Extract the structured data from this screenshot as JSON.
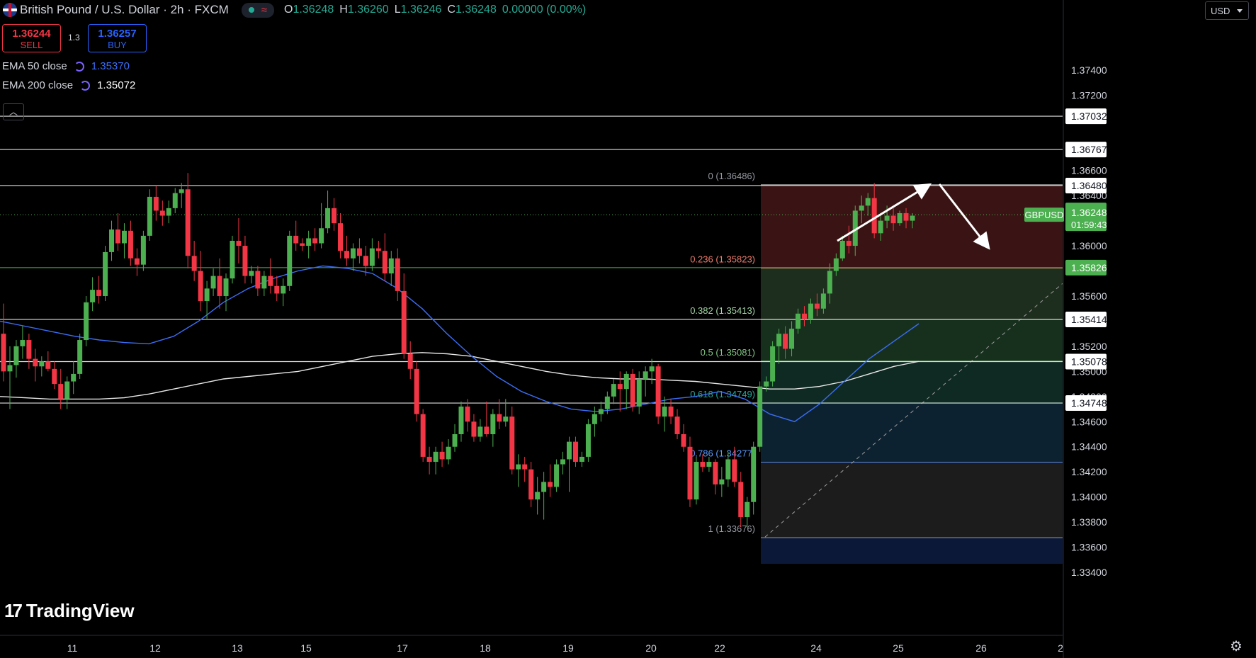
{
  "header": {
    "symbol_title": "British Pound / U.S. Dollar · 2h · FXCM",
    "ohlc": {
      "o": "1.36248",
      "h": "1.36260",
      "l": "1.36246",
      "c": "1.36248",
      "chg": "0.00000 (0.00%)"
    }
  },
  "trade": {
    "sell_price": "1.36244",
    "sell_label": "SELL",
    "spread": "1.3",
    "buy_price": "1.36257",
    "buy_label": "BUY"
  },
  "indicators": [
    {
      "label": "EMA 50 close",
      "value": "1.35370",
      "color": "#3b6ef6"
    },
    {
      "label": "EMA 200 close",
      "value": "1.35072",
      "color": "#e8e8e8"
    }
  ],
  "currency_selector": "USD",
  "branding": "TradingView",
  "colors": {
    "up": "#4caf50",
    "down": "#f23645",
    "ema50": "#3b6ef6",
    "ema200": "#e8e8e8",
    "background": "#000000"
  },
  "chart_data": {
    "type": "candlestick",
    "symbol": "GBPUSD",
    "last_price": "1.36248",
    "countdown": "01:59:43",
    "y_axis": {
      "range": [
        1.332,
        1.377
      ],
      "ticks": [
        "1.37400",
        "1.37200",
        "1.36800",
        "1.36600",
        "1.36400",
        "1.36000",
        "1.35600",
        "1.35200",
        "1.35000",
        "1.34800",
        "1.34600",
        "1.34400",
        "1.34200",
        "1.34000",
        "1.33800",
        "1.33600",
        "1.33400"
      ]
    },
    "x_axis": {
      "labels": [
        "11",
        "12",
        "13",
        "15",
        "17",
        "18",
        "19",
        "20",
        "22",
        "24",
        "25",
        "26",
        "2"
      ]
    },
    "horizontal_levels": [
      {
        "price": 1.37032,
        "label": "1.37032"
      },
      {
        "price": 1.36767,
        "label": "1.36767"
      },
      {
        "price": 1.3648,
        "label": "1.36480"
      },
      {
        "price": 1.35826,
        "label": "1.35826"
      },
      {
        "price": 1.35414,
        "label": "1.35414"
      },
      {
        "price": 1.35078,
        "label": "1.35078"
      },
      {
        "price": 1.34748,
        "label": "1.34748"
      }
    ],
    "fibonacci": [
      {
        "ratio": "0",
        "price": 1.36486,
        "label": "0 (1.36486)"
      },
      {
        "ratio": "0.236",
        "price": 1.35823,
        "label": "0.236 (1.35823)"
      },
      {
        "ratio": "0.382",
        "price": 1.35413,
        "label": "0.382 (1.35413)"
      },
      {
        "ratio": "0.5",
        "price": 1.35081,
        "label": "0.5 (1.35081)"
      },
      {
        "ratio": "0.618",
        "price": 1.34749,
        "label": "0.618 (1.34749)"
      },
      {
        "ratio": "0.786",
        "price": 1.34277,
        "label": "0.786 (1.34277)"
      },
      {
        "ratio": "1",
        "price": 1.33676,
        "label": "1 (1.33676)"
      }
    ],
    "candles": [
      [
        1.353,
        1.3554,
        1.3492,
        1.35
      ],
      [
        1.35,
        1.352,
        1.347,
        1.3505
      ],
      [
        1.3505,
        1.3525,
        1.3495,
        1.352
      ],
      [
        1.352,
        1.3536,
        1.351,
        1.3525
      ],
      [
        1.3525,
        1.353,
        1.3502,
        1.351
      ],
      [
        1.351,
        1.3518,
        1.3492,
        1.3504
      ],
      [
        1.3504,
        1.3512,
        1.3496,
        1.3508
      ],
      [
        1.3508,
        1.3516,
        1.35,
        1.3502
      ],
      [
        1.3502,
        1.3508,
        1.3486,
        1.349
      ],
      [
        1.349,
        1.3502,
        1.347,
        1.3478
      ],
      [
        1.3478,
        1.3496,
        1.347,
        1.3492
      ],
      [
        1.3492,
        1.3508,
        1.3482,
        1.3498
      ],
      [
        1.3498,
        1.353,
        1.3494,
        1.3525
      ],
      [
        1.3525,
        1.356,
        1.352,
        1.3555
      ],
      [
        1.3555,
        1.3575,
        1.3548,
        1.3565
      ],
      [
        1.3565,
        1.3576,
        1.3554,
        1.356
      ],
      [
        1.356,
        1.36,
        1.3556,
        1.3595
      ],
      [
        1.3595,
        1.362,
        1.3588,
        1.3613
      ],
      [
        1.3613,
        1.3626,
        1.3596,
        1.3602
      ],
      [
        1.3602,
        1.3618,
        1.359,
        1.3612
      ],
      [
        1.3612,
        1.362,
        1.3584,
        1.359
      ],
      [
        1.359,
        1.3598,
        1.3576,
        1.3585
      ],
      [
        1.3585,
        1.3612,
        1.358,
        1.3608
      ],
      [
        1.3608,
        1.3645,
        1.3604,
        1.3639
      ],
      [
        1.3639,
        1.3648,
        1.362,
        1.3628
      ],
      [
        1.3628,
        1.3636,
        1.3616,
        1.3624
      ],
      [
        1.3624,
        1.3636,
        1.3618,
        1.363
      ],
      [
        1.363,
        1.3646,
        1.3626,
        1.3642
      ],
      [
        1.3642,
        1.365,
        1.363,
        1.3645
      ],
      [
        1.3645,
        1.3658,
        1.3582,
        1.3592
      ],
      [
        1.3592,
        1.3604,
        1.3572,
        1.358
      ],
      [
        1.358,
        1.3596,
        1.3548,
        1.3556
      ],
      [
        1.3556,
        1.3572,
        1.3542,
        1.3566
      ],
      [
        1.3566,
        1.3582,
        1.356,
        1.3576
      ],
      [
        1.3576,
        1.359,
        1.355,
        1.356
      ],
      [
        1.356,
        1.3578,
        1.3548,
        1.3574
      ],
      [
        1.3574,
        1.3608,
        1.357,
        1.3604
      ],
      [
        1.3604,
        1.3622,
        1.3586,
        1.36
      ],
      [
        1.36,
        1.3608,
        1.357,
        1.3576
      ],
      [
        1.3576,
        1.3584,
        1.357,
        1.358
      ],
      [
        1.358,
        1.3584,
        1.356,
        1.3566
      ],
      [
        1.3566,
        1.358,
        1.356,
        1.3576
      ],
      [
        1.3576,
        1.359,
        1.3562,
        1.3568
      ],
      [
        1.3568,
        1.3576,
        1.3556,
        1.3562
      ],
      [
        1.3562,
        1.3574,
        1.3552,
        1.3568
      ],
      [
        1.3568,
        1.3612,
        1.3564,
        1.3608
      ],
      [
        1.3608,
        1.362,
        1.3596,
        1.3602
      ],
      [
        1.3602,
        1.3606,
        1.3596,
        1.36
      ],
      [
        1.36,
        1.3612,
        1.359,
        1.3606
      ],
      [
        1.3606,
        1.3614,
        1.3596,
        1.3602
      ],
      [
        1.3602,
        1.3634,
        1.3598,
        1.3614
      ],
      [
        1.3614,
        1.3644,
        1.361,
        1.363
      ],
      [
        1.363,
        1.3638,
        1.3612,
        1.3618
      ],
      [
        1.3618,
        1.3626,
        1.359,
        1.3596
      ],
      [
        1.3596,
        1.3608,
        1.3584,
        1.359
      ],
      [
        1.359,
        1.3602,
        1.358,
        1.3598
      ],
      [
        1.3598,
        1.3606,
        1.3586,
        1.3592
      ],
      [
        1.3592,
        1.36,
        1.3576,
        1.3584
      ],
      [
        1.3584,
        1.3606,
        1.358,
        1.3598
      ],
      [
        1.3598,
        1.3604,
        1.359,
        1.3596
      ],
      [
        1.3596,
        1.361,
        1.3572,
        1.3578
      ],
      [
        1.3578,
        1.3596,
        1.3568,
        1.359
      ],
      [
        1.359,
        1.3598,
        1.3556,
        1.3564
      ],
      [
        1.3564,
        1.3578,
        1.351,
        1.3514
      ],
      [
        1.3514,
        1.3524,
        1.3494,
        1.3502
      ],
      [
        1.3502,
        1.3508,
        1.346,
        1.3466
      ],
      [
        1.3466,
        1.347,
        1.3428,
        1.3432
      ],
      [
        1.3432,
        1.344,
        1.3418,
        1.3428
      ],
      [
        1.3428,
        1.344,
        1.3418,
        1.3436
      ],
      [
        1.3436,
        1.3444,
        1.3424,
        1.343
      ],
      [
        1.343,
        1.3446,
        1.3426,
        1.344
      ],
      [
        1.344,
        1.3458,
        1.3436,
        1.345
      ],
      [
        1.345,
        1.3476,
        1.3444,
        1.3472
      ],
      [
        1.3472,
        1.3478,
        1.3452,
        1.346
      ],
      [
        1.346,
        1.3466,
        1.3444,
        1.3448
      ],
      [
        1.3448,
        1.3462,
        1.3444,
        1.3456
      ],
      [
        1.3456,
        1.3476,
        1.3448,
        1.345
      ],
      [
        1.345,
        1.347,
        1.344,
        1.3466
      ],
      [
        1.3466,
        1.3478,
        1.3454,
        1.346
      ],
      [
        1.346,
        1.3478,
        1.3456,
        1.3464
      ],
      [
        1.3464,
        1.3472,
        1.3418,
        1.3422
      ],
      [
        1.3422,
        1.3434,
        1.3408,
        1.3426
      ],
      [
        1.3426,
        1.3432,
        1.3412,
        1.3422
      ],
      [
        1.3422,
        1.3428,
        1.3392,
        1.3398
      ],
      [
        1.3398,
        1.3416,
        1.3386,
        1.3404
      ],
      [
        1.3404,
        1.342,
        1.3382,
        1.3412
      ],
      [
        1.3412,
        1.3426,
        1.34,
        1.3408
      ],
      [
        1.3408,
        1.343,
        1.3404,
        1.3426
      ],
      [
        1.3426,
        1.3436,
        1.3418,
        1.343
      ],
      [
        1.343,
        1.3448,
        1.3404,
        1.3444
      ],
      [
        1.3444,
        1.3448,
        1.3424,
        1.3428
      ],
      [
        1.3428,
        1.3436,
        1.3424,
        1.3432
      ],
      [
        1.3432,
        1.3462,
        1.3428,
        1.3458
      ],
      [
        1.3458,
        1.3472,
        1.3448,
        1.3466
      ],
      [
        1.3466,
        1.3476,
        1.346,
        1.347
      ],
      [
        1.347,
        1.3484,
        1.3466,
        1.348
      ],
      [
        1.348,
        1.3494,
        1.3474,
        1.349
      ],
      [
        1.349,
        1.35,
        1.3468,
        1.3486
      ],
      [
        1.3486,
        1.35,
        1.347,
        1.3498
      ],
      [
        1.3498,
        1.3502,
        1.3468,
        1.3472
      ],
      [
        1.3472,
        1.35,
        1.3466,
        1.3494
      ],
      [
        1.3494,
        1.3504,
        1.348,
        1.35
      ],
      [
        1.35,
        1.351,
        1.349,
        1.3504
      ],
      [
        1.3504,
        1.3506,
        1.3458,
        1.3464
      ],
      [
        1.3464,
        1.348,
        1.3452,
        1.3472
      ],
      [
        1.3472,
        1.3478,
        1.3458,
        1.3464
      ],
      [
        1.3464,
        1.347,
        1.3446,
        1.345
      ],
      [
        1.345,
        1.3458,
        1.3436,
        1.344
      ],
      [
        1.344,
        1.3448,
        1.3392,
        1.3398
      ],
      [
        1.3398,
        1.3432,
        1.3394,
        1.3428
      ],
      [
        1.3428,
        1.3434,
        1.342,
        1.3424
      ],
      [
        1.3424,
        1.3432,
        1.342,
        1.3428
      ],
      [
        1.3428,
        1.343,
        1.3402,
        1.341
      ],
      [
        1.341,
        1.3424,
        1.34,
        1.3414
      ],
      [
        1.3414,
        1.3436,
        1.3408,
        1.343
      ],
      [
        1.343,
        1.344,
        1.3408,
        1.3412
      ],
      [
        1.3412,
        1.342,
        1.3376,
        1.3384
      ],
      [
        1.3384,
        1.34,
        1.3376,
        1.3396
      ],
      [
        1.3396,
        1.3444,
        1.3386,
        1.344
      ],
      [
        1.344,
        1.3492,
        1.3436,
        1.3488
      ],
      [
        1.3488,
        1.3496,
        1.3484,
        1.3492
      ],
      [
        1.3492,
        1.3524,
        1.3488,
        1.352
      ],
      [
        1.352,
        1.3534,
        1.3506,
        1.353
      ],
      [
        1.353,
        1.3536,
        1.351,
        1.3518
      ],
      [
        1.3518,
        1.354,
        1.3512,
        1.3534
      ],
      [
        1.3534,
        1.355,
        1.353,
        1.3546
      ],
      [
        1.3546,
        1.3552,
        1.3536,
        1.3542
      ],
      [
        1.3542,
        1.3558,
        1.3538,
        1.3554
      ],
      [
        1.3554,
        1.3562,
        1.3544,
        1.355
      ],
      [
        1.355,
        1.3566,
        1.3546,
        1.3562
      ],
      [
        1.3562,
        1.3586,
        1.3554,
        1.358
      ],
      [
        1.358,
        1.3594,
        1.3576,
        1.359
      ],
      [
        1.359,
        1.3608,
        1.3588,
        1.3604
      ],
      [
        1.3604,
        1.3616,
        1.3594,
        1.36
      ],
      [
        1.36,
        1.3632,
        1.3592,
        1.3628
      ],
      [
        1.3628,
        1.364,
        1.3618,
        1.3632
      ],
      [
        1.3632,
        1.3642,
        1.3624,
        1.3638
      ],
      [
        1.3638,
        1.365,
        1.3606,
        1.361
      ],
      [
        1.361,
        1.3626,
        1.3604,
        1.362
      ],
      [
        1.362,
        1.3632,
        1.3614,
        1.3624
      ],
      [
        1.3624,
        1.363,
        1.3612,
        1.3618
      ],
      [
        1.3618,
        1.3628,
        1.3616,
        1.3626
      ],
      [
        1.3626,
        1.363,
        1.3614,
        1.362
      ],
      [
        1.362,
        1.3626,
        1.3614,
        1.3624
      ]
    ],
    "ema50": [
      1.354,
      1.3536,
      1.3532,
      1.3528,
      1.3525,
      1.3523,
      1.3522,
      1.3528,
      1.354,
      1.3555,
      1.3566,
      1.3574,
      1.358,
      1.3584,
      1.3582,
      1.3578,
      1.3566,
      1.355,
      1.353,
      1.3512,
      1.3496,
      1.3484,
      1.3476,
      1.347,
      1.3468,
      1.347,
      1.3474,
      1.3478,
      1.348,
      1.3484,
      1.3478,
      1.3466,
      1.346,
      1.3474,
      1.3492,
      1.351,
      1.3524,
      1.3538
    ],
    "ema200": [
      1.348,
      1.3479,
      1.3478,
      1.3478,
      1.3478,
      1.3479,
      1.3482,
      1.3486,
      1.349,
      1.3494,
      1.3496,
      1.3498,
      1.35,
      1.3504,
      1.3508,
      1.3512,
      1.3514,
      1.3515,
      1.3514,
      1.3512,
      1.3508,
      1.3504,
      1.35,
      1.3497,
      1.3495,
      1.3494,
      1.3494,
      1.3493,
      1.3492,
      1.349,
      1.3488,
      1.3486,
      1.3486,
      1.3488,
      1.3492,
      1.3498,
      1.3504,
      1.3508
    ]
  }
}
